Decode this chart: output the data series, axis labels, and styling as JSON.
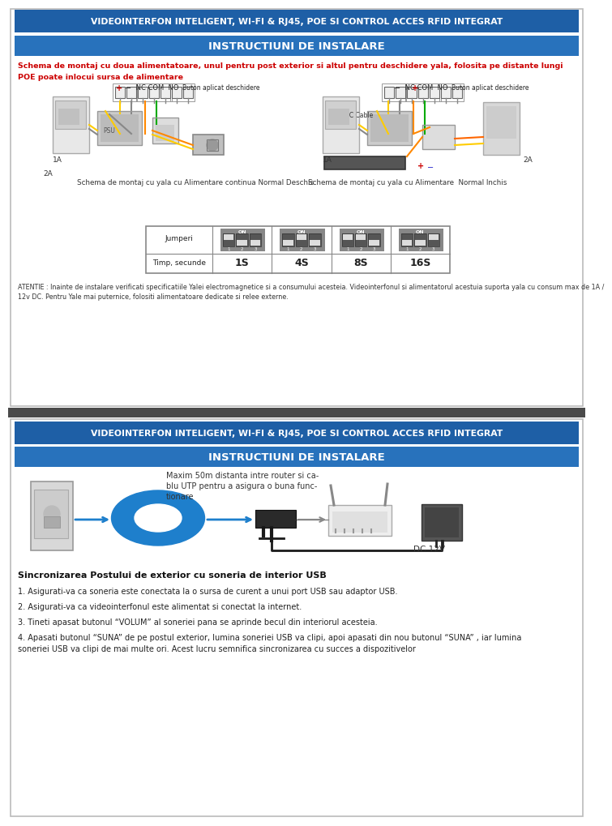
{
  "title_text": "VIDEOINTERFON INTELIGENT, WI-FI & RJ45, POE SI CONTROL ACCES RFID INTEGRAT",
  "subtitle_text": "INSTRUCTIUNI DE INSTALARE",
  "title_bg": "#1e5fa6",
  "subtitle_bg": "#2872bc",
  "title_fg": "#ffffff",
  "page_bg": "#ffffff",
  "red_text1": "Schema de montaj cu doua alimentatoare, unul pentru post exterior si altul pentru deschidere yala, folosita pe distante lungi",
  "red_text2": "POE poate inlocui sursa de alimentare",
  "red_color": "#cc0000",
  "caption_left": "Schema de montaj cu yala cu Alimentare continua Normal Deschis",
  "caption_right": "Schema de montaj cu yala cu Alimentare  Normal Inchis",
  "jumper_row1": "Jumperi",
  "jumper_row2": "Timp, secunde",
  "jumper_vals": [
    "1S",
    "4S",
    "8S",
    "16S"
  ],
  "atentie_text": "ATENTIE : Inainte de instalare verificati specificatiile Yalei electromagnetice si a consumului acesteia. Videointerfonul si alimentatorul acestuia suporta yala cu consum max de 1A /\n12v DC. Pentru Yale mai puternice, folositi alimentatoare dedicate si relee externe.",
  "panel2_caption": "Maxim 50m distanta intre router si ca-\nblu UTP pentru a asigura o buna func-\ntionare",
  "dc_label": "DC 12V",
  "sync_title": "Sincronizarea Postului de exterior cu soneria de interior USB",
  "sync_items": [
    "1. Asigurati-va ca soneria este conectata la o sursa de curent a unui port USB sau adaptor USB.",
    "2. Asigurati-va ca videointerfonul este alimentat si conectat la internet.",
    "3. Tineti apasat butonul “VOLUM” al soneriei pana se aprinde becul din interiorul acesteia.",
    "4. Apasati butonul “SUNA” de pe postul exterior, lumina soneriei USB va clipi, apoi apasati din nou butonul “SUNA” , iar lumina\nsoneriei USB va clipi de mai multe ori. Acest lucru semnifica sincronizarea cu succes a dispozitivelor"
  ],
  "divider_color": "#4a4a4a",
  "outer_border": "#444444",
  "table_border": "#aaaaaa",
  "jumper_bg": "#888888",
  "jumper_switch_on": "#ffffff",
  "jumper_switch_off": "#555555"
}
